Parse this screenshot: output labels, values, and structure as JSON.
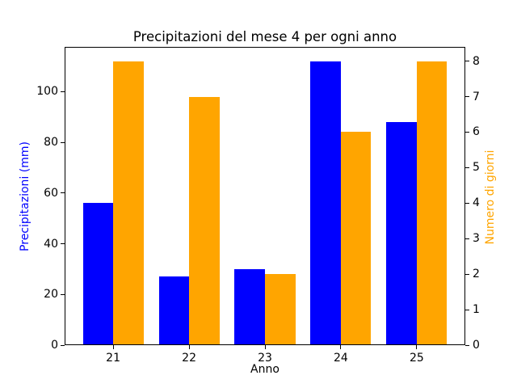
{
  "chart_data": {
    "type": "bar",
    "title": "Precipitazioni del mese 4 per ogni anno",
    "xlabel": "Anno",
    "ylabel_left": "Precipitazioni (mm)",
    "ylabel_right": "Numero di giorni",
    "categories": [
      21,
      22,
      23,
      24,
      25
    ],
    "series": [
      {
        "id": "precipitation",
        "name": "Precipitazioni (mm)",
        "axis": "left",
        "color": "#0000ff",
        "offset": -0.2,
        "values": [
          56,
          27,
          30,
          112,
          88
        ]
      },
      {
        "id": "days",
        "name": "Numero di giorni",
        "axis": "right",
        "color": "#ffa500",
        "offset": 0.2,
        "values": [
          8,
          7,
          2,
          6,
          8
        ]
      }
    ],
    "bar_width": 0.4,
    "xlim": [
      20.36,
      25.64
    ],
    "ylim_left": [
      0,
      117.6
    ],
    "ylim_right": [
      0,
      8.4
    ],
    "yticks_left": [
      0,
      20,
      40,
      60,
      80,
      100
    ],
    "yticks_right": [
      0,
      1,
      2,
      3,
      4,
      5,
      6,
      7,
      8
    ],
    "grid": false,
    "legend": "none",
    "colors": {
      "bar_left": "#0000ff",
      "bar_right": "#ffa500",
      "left_label": "#0000ff",
      "right_label": "#ffa500",
      "axis": "#000000",
      "title": "#000000",
      "background": "#ffffff"
    }
  }
}
